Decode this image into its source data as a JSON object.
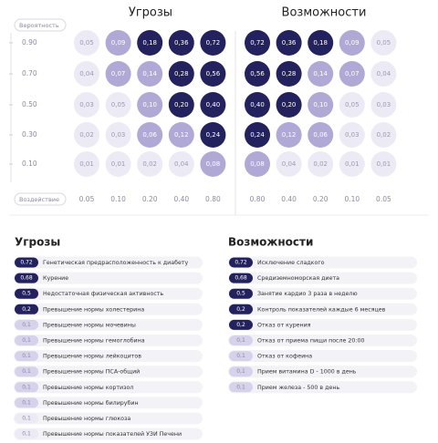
{
  "y_button": "Вероятность",
  "x_button": "Воздействие",
  "y_labels": [
    "0.90",
    "0.70",
    "0.50",
    "0.30",
    "0.10"
  ],
  "threats_matrix": {
    "title": "Угрозы",
    "x_labels": [
      "0.05",
      "0.10",
      "0.20",
      "0.40",
      "0.80"
    ],
    "rows": [
      [
        {
          "label": "0,05",
          "color": "#ecebf5"
        },
        {
          "label": "0,09",
          "color": "#b0a9d6"
        },
        {
          "label": "0,18",
          "color": "#23215e"
        },
        {
          "label": "0,36",
          "color": "#23215e"
        },
        {
          "label": "0,72",
          "color": "#23215e"
        }
      ],
      [
        {
          "label": "0,04",
          "color": "#ecebf5"
        },
        {
          "label": "0,07",
          "color": "#b0a9d6"
        },
        {
          "label": "0,14",
          "color": "#b0a9d6"
        },
        {
          "label": "0,28",
          "color": "#23215e"
        },
        {
          "label": "0,56",
          "color": "#23215e"
        }
      ],
      [
        {
          "label": "0,03",
          "color": "#ecebf5"
        },
        {
          "label": "0,05",
          "color": "#ecebf5"
        },
        {
          "label": "0,10",
          "color": "#b0a9d6"
        },
        {
          "label": "0,20",
          "color": "#23215e"
        },
        {
          "label": "0,40",
          "color": "#23215e"
        }
      ],
      [
        {
          "label": "0,02",
          "color": "#ecebf5"
        },
        {
          "label": "0,03",
          "color": "#ecebf5"
        },
        {
          "label": "0,06",
          "color": "#b0a9d6"
        },
        {
          "label": "0,12",
          "color": "#b0a9d6"
        },
        {
          "label": "0,24",
          "color": "#23215e"
        }
      ],
      [
        {
          "label": "0,01",
          "color": "#ecebf5"
        },
        {
          "label": "0,01",
          "color": "#ecebf5"
        },
        {
          "label": "0,02",
          "color": "#ecebf5"
        },
        {
          "label": "0,04",
          "color": "#ecebf5"
        },
        {
          "label": "0,08",
          "color": "#b0a9d6"
        }
      ]
    ]
  },
  "opportunities_matrix": {
    "title": "Возможности",
    "x_labels": [
      "0.80",
      "0.40",
      "0.20",
      "0.10",
      "0.05"
    ],
    "rows": [
      [
        {
          "label": "0,72",
          "color": "#23215e"
        },
        {
          "label": "0,36",
          "color": "#23215e"
        },
        {
          "label": "0,18",
          "color": "#23215e"
        },
        {
          "label": "0,09",
          "color": "#b0a9d6"
        },
        {
          "label": "0,05",
          "color": "#ecebf5"
        }
      ],
      [
        {
          "label": "0,56",
          "color": "#23215e"
        },
        {
          "label": "0,28",
          "color": "#23215e"
        },
        {
          "label": "0,14",
          "color": "#b0a9d6"
        },
        {
          "label": "0,07",
          "color": "#b0a9d6"
        },
        {
          "label": "0,04",
          "color": "#ecebf5"
        }
      ],
      [
        {
          "label": "0,40",
          "color": "#23215e"
        },
        {
          "label": "0,20",
          "color": "#23215e"
        },
        {
          "label": "0,10",
          "color": "#b0a9d6"
        },
        {
          "label": "0,05",
          "color": "#ecebf5"
        },
        {
          "label": "0,03",
          "color": "#ecebf5"
        }
      ],
      [
        {
          "label": "0,24",
          "color": "#23215e"
        },
        {
          "label": "0,12",
          "color": "#b0a9d6"
        },
        {
          "label": "0,06",
          "color": "#b0a9d6"
        },
        {
          "label": "0,03",
          "color": "#ecebf5"
        },
        {
          "label": "0,02",
          "color": "#ecebf5"
        }
      ],
      [
        {
          "label": "0,08",
          "color": "#b0a9d6"
        },
        {
          "label": "0,04",
          "color": "#ecebf5"
        },
        {
          "label": "0,02",
          "color": "#ecebf5"
        },
        {
          "label": "0,01",
          "color": "#ecebf5"
        },
        {
          "label": "0,01",
          "color": "#ecebf5"
        }
      ]
    ]
  },
  "threats_list": {
    "title": "Угрозы",
    "items": [
      {
        "value": "0,72",
        "text": "Генетическая предрасположенность к диабету",
        "color": "#23215e"
      },
      {
        "value": "0,68",
        "text": "Курение",
        "color": "#23215e"
      },
      {
        "value": "0,5",
        "text": "Недостаточная физическая активность",
        "color": "#23215e"
      },
      {
        "value": "0,2",
        "text": "Превышение нормы холестерина",
        "color": "#23215e"
      },
      {
        "value": "0,1",
        "text": "Превышение нормы мочевины",
        "color": "#d6d2ec"
      },
      {
        "value": "0,1",
        "text": "Превышение нормы гемоглобина",
        "color": "#d6d2ec"
      },
      {
        "value": "0,1",
        "text": "Превышение нормы лейкоцитов",
        "color": "#d6d2ec"
      },
      {
        "value": "0,1",
        "text": "Превышение нормы ПСА-общий",
        "color": "#d6d2ec"
      },
      {
        "value": "0,1",
        "text": "Превышение нормы кортизол",
        "color": "#d6d2ec"
      },
      {
        "value": "0,1",
        "text": "Превышение нормы билирубин",
        "color": "#d6d2ec"
      },
      {
        "value": "0,1",
        "text": "Превышение нормы глюкоза",
        "color": "#ecebf5"
      },
      {
        "value": "0,1",
        "text": "Превышение нормы показателей УЗИ Печени",
        "color": "#ecebf5"
      }
    ]
  },
  "opportunities_list": {
    "title": "Возможности",
    "items": [
      {
        "value": "0,72",
        "text": "Исключение сладкого",
        "color": "#23215e"
      },
      {
        "value": "0,68",
        "text": "Средиземноморская диета",
        "color": "#23215e"
      },
      {
        "value": "0,5",
        "text": "Занятие кардио 3 раза в неделю",
        "color": "#23215e"
      },
      {
        "value": "0,2",
        "text": "Контроль показателей каждые 6 месяцев",
        "color": "#23215e"
      },
      {
        "value": "0,2",
        "text": "Отказ от курения",
        "color": "#23215e"
      },
      {
        "value": "0,1",
        "text": "Отказ от приема пищи после 20:00",
        "color": "#d6d2ec"
      },
      {
        "value": "0,1",
        "text": "Отказ от кофеина",
        "color": "#d6d2ec"
      },
      {
        "value": "0,1",
        "text": "Прием витамина D - 1000 в день",
        "color": "#d6d2ec"
      },
      {
        "value": "0,1",
        "text": "Прием железа - 500 в день",
        "color": "#d6d2ec"
      }
    ]
  }
}
